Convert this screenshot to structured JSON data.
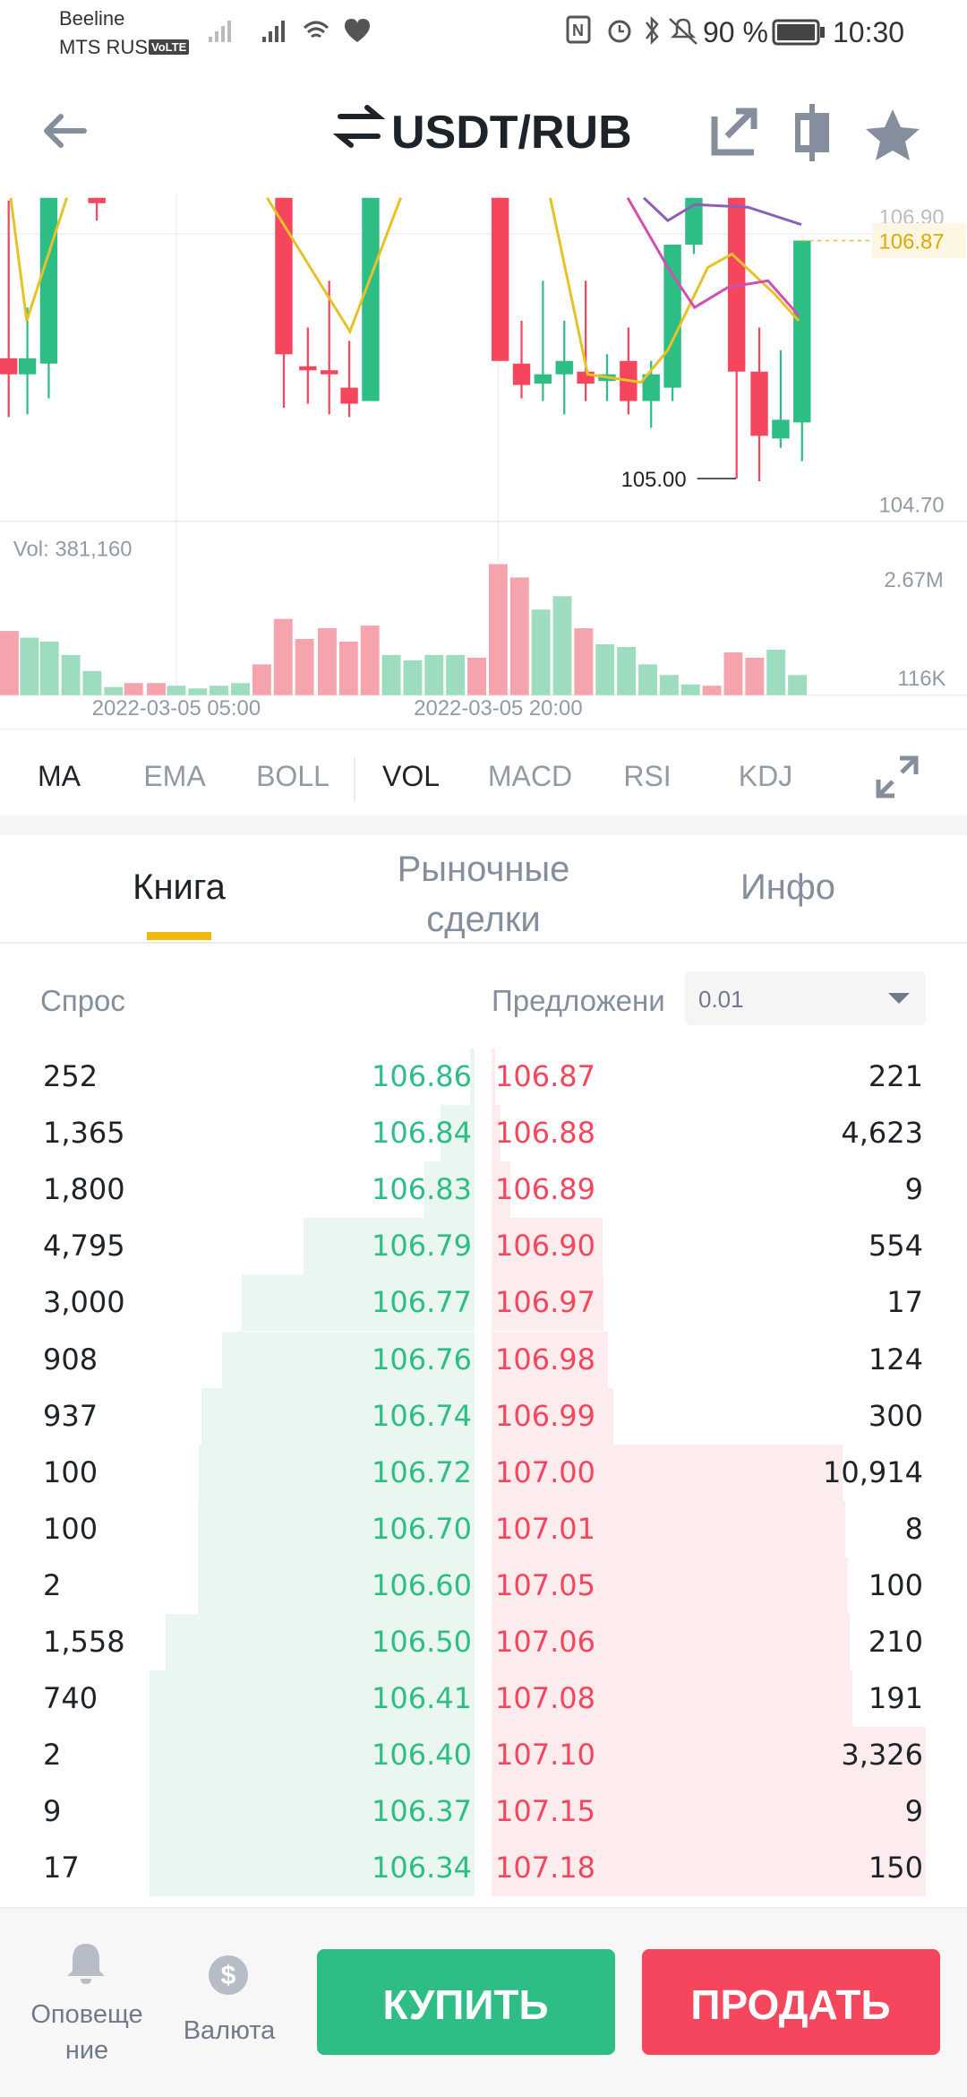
{
  "status_bar": {
    "carrier_1": "Beeline",
    "carrier_2": "MTS RUS",
    "volte": "VoLTE",
    "battery": "90 %",
    "time": "10:30"
  },
  "header": {
    "title": "USDT/RUB"
  },
  "chart": {
    "top_price": "106.90",
    "last_price": "106.87",
    "low_marker": "105.00",
    "bottom_price": "104.70",
    "volume": "Vol: 381,160",
    "volume_max": "2.67M",
    "volume_min": "116K",
    "dates": [
      "2022-03-05 05:00",
      "2022-03-05 20:00"
    ]
  },
  "indicator_tabs": [
    "MA",
    "EMA",
    "BOLL",
    "VOL",
    "MACD",
    "RSI",
    "KDJ"
  ],
  "section_tabs": [
    "Книга",
    "Рыночные сделки",
    "Инфо"
  ],
  "order_book": {
    "bid_header": "Спрос",
    "ask_header": "Предложени",
    "tick_size": "0.01",
    "rows": [
      [
        "252",
        "106.86",
        "106.87",
        "221"
      ],
      [
        "1,365",
        "106.84",
        "106.88",
        "4,623"
      ],
      [
        "1,800",
        "106.83",
        "106.89",
        "9"
      ],
      [
        "4,795",
        "106.79",
        "106.90",
        "554"
      ],
      [
        "3,000",
        "106.77",
        "106.97",
        "17"
      ],
      [
        "908",
        "106.76",
        "106.98",
        "124"
      ],
      [
        "937",
        "106.74",
        "106.99",
        "300"
      ],
      [
        "100",
        "106.72",
        "107.00",
        "10,914"
      ],
      [
        "100",
        "106.70",
        "107.01",
        "8"
      ],
      [
        "2",
        "106.60",
        "107.05",
        "100"
      ],
      [
        "1,558",
        "106.50",
        "107.06",
        "210"
      ],
      [
        "740",
        "106.41",
        "107.08",
        "191"
      ],
      [
        "2",
        "106.40",
        "107.10",
        "3,326"
      ],
      [
        "9",
        "106.37",
        "107.15",
        "9"
      ],
      [
        "17",
        "106.34",
        "107.18",
        "150"
      ]
    ]
  },
  "bottom_bar": {
    "alerts": [
      "Оповеще",
      "ние"
    ],
    "currency": "Валюта",
    "buy": "КУПИТЬ",
    "sell": "ПРОДАТЬ"
  }
}
